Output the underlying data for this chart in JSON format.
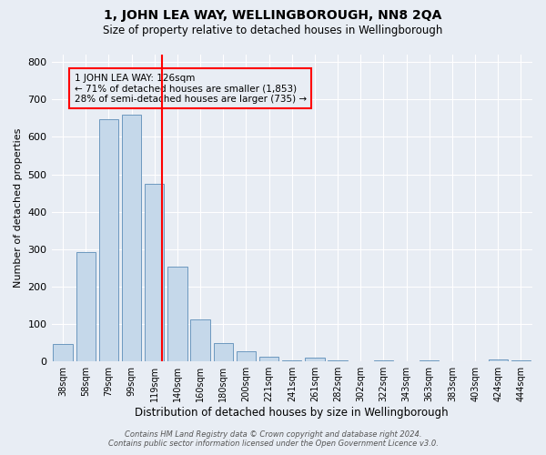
{
  "title": "1, JOHN LEA WAY, WELLINGBOROUGH, NN8 2QA",
  "subtitle": "Size of property relative to detached houses in Wellingborough",
  "xlabel": "Distribution of detached houses by size in Wellingborough",
  "ylabel": "Number of detached properties",
  "bar_labels": [
    "38sqm",
    "58sqm",
    "79sqm",
    "99sqm",
    "119sqm",
    "140sqm",
    "160sqm",
    "180sqm",
    "200sqm",
    "221sqm",
    "241sqm",
    "261sqm",
    "282sqm",
    "302sqm",
    "322sqm",
    "343sqm",
    "363sqm",
    "383sqm",
    "403sqm",
    "424sqm",
    "444sqm"
  ],
  "bar_values": [
    47,
    293,
    648,
    660,
    475,
    253,
    113,
    48,
    28,
    13,
    3,
    10,
    2,
    0,
    3,
    0,
    2,
    0,
    0,
    5,
    3
  ],
  "bar_color": "#c5d8ea",
  "bar_edge_color": "#5b8db8",
  "vline_color": "red",
  "vline_pos": 4.33,
  "annotation_line1": "1 JOHN LEA WAY: 126sqm",
  "annotation_line2": "← 71% of detached houses are smaller (1,853)",
  "annotation_line3": "28% of semi-detached houses are larger (735) →",
  "annotation_box_edgecolor": "red",
  "background_color": "#e8edf4",
  "ylim": [
    0,
    820
  ],
  "yticks": [
    0,
    100,
    200,
    300,
    400,
    500,
    600,
    700,
    800
  ],
  "footer_line1": "Contains HM Land Registry data © Crown copyright and database right 2024.",
  "footer_line2": "Contains public sector information licensed under the Open Government Licence v3.0."
}
